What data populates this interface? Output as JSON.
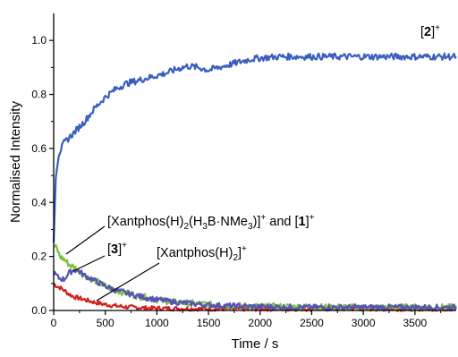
{
  "chart_data": {
    "type": "line",
    "xlabel": "Time / s",
    "ylabel": "Normalised Intensity",
    "xlim": [
      0,
      3900
    ],
    "ylim": [
      0,
      1.1
    ],
    "x_ticks": [
      0,
      500,
      1000,
      1500,
      2000,
      2500,
      3000,
      3500
    ],
    "x_tick_labels": [
      "0",
      "500",
      "1000",
      "1500",
      "2000",
      "2500",
      "3000",
      "3500"
    ],
    "y_ticks": [
      0.0,
      0.2,
      0.4,
      0.6,
      0.8,
      1.0
    ],
    "y_tick_labels": [
      "0.0",
      "0.2",
      "0.4",
      "0.6",
      "0.8",
      "1.0"
    ],
    "grid": false,
    "series": [
      {
        "name": "[2]+",
        "color": "#3a5fbf",
        "x": [
          0,
          20,
          50,
          100,
          150,
          200,
          300,
          400,
          500,
          600,
          700,
          800,
          900,
          1000,
          1100,
          1200,
          1300,
          1400,
          1500,
          1600,
          1700,
          1800,
          1900,
          2000,
          2200,
          2400,
          2600,
          2800,
          3000,
          3200,
          3400,
          3600,
          3900
        ],
        "values": [
          0.25,
          0.5,
          0.58,
          0.62,
          0.64,
          0.66,
          0.7,
          0.75,
          0.79,
          0.82,
          0.84,
          0.85,
          0.86,
          0.87,
          0.88,
          0.895,
          0.905,
          0.9,
          0.89,
          0.9,
          0.91,
          0.92,
          0.93,
          0.935,
          0.94,
          0.94,
          0.94,
          0.94,
          0.94,
          0.94,
          0.94,
          0.94,
          0.94
        ]
      },
      {
        "name": "[Xantphos(H)2(H3B·NMe3)]+ and [1]+",
        "color": "#7dbf3a",
        "x": [
          0,
          30,
          60,
          100,
          150,
          200,
          300,
          400,
          500,
          600,
          800,
          1000,
          1200,
          1500,
          2000,
          2500,
          3000,
          3500,
          3900
        ],
        "values": [
          0.24,
          0.23,
          0.2,
          0.19,
          0.17,
          0.16,
          0.13,
          0.11,
          0.09,
          0.075,
          0.055,
          0.04,
          0.03,
          0.022,
          0.015,
          0.013,
          0.012,
          0.012,
          0.012
        ]
      },
      {
        "name": "[3]+",
        "color": "#5552b8",
        "x": [
          0,
          50,
          100,
          150,
          200,
          250,
          300,
          400,
          500,
          600,
          800,
          1000,
          1200,
          1500,
          1800,
          2000,
          2500,
          3000,
          3500,
          3900
        ],
        "values": [
          0.14,
          0.12,
          0.115,
          0.14,
          0.15,
          0.145,
          0.13,
          0.11,
          0.09,
          0.075,
          0.055,
          0.04,
          0.03,
          0.02,
          0.016,
          0.014,
          0.012,
          0.012,
          0.012,
          0.012
        ]
      },
      {
        "name": "[Xantphos(H)2]+",
        "color": "#d42020",
        "x": [
          0,
          30,
          60,
          100,
          150,
          200,
          300,
          400,
          500,
          600,
          700,
          800,
          900,
          1000,
          1200,
          1500,
          2000,
          2500,
          3000,
          3500,
          3900
        ],
        "values": [
          0.1,
          0.09,
          0.085,
          0.075,
          0.06,
          0.05,
          0.04,
          0.03,
          0.022,
          0.017,
          0.013,
          0.011,
          0.009,
          0.008,
          0.007,
          0.006,
          0.006,
          0.006,
          0.006,
          0.006,
          0.006
        ]
      }
    ],
    "annotations": [
      {
        "base": "[2]",
        "sup": "+"
      },
      {
        "parts": [
          "[Xantphos(H)",
          "2",
          "(H",
          "3",
          "B·NMe",
          "3",
          ")]",
          "+",
          " and [",
          "1",
          "]",
          "+"
        ]
      },
      {
        "base": "[3]",
        "sup": "+"
      },
      {
        "parts": [
          "[Xantphos(H)",
          "2",
          "]",
          "+"
        ]
      }
    ]
  }
}
